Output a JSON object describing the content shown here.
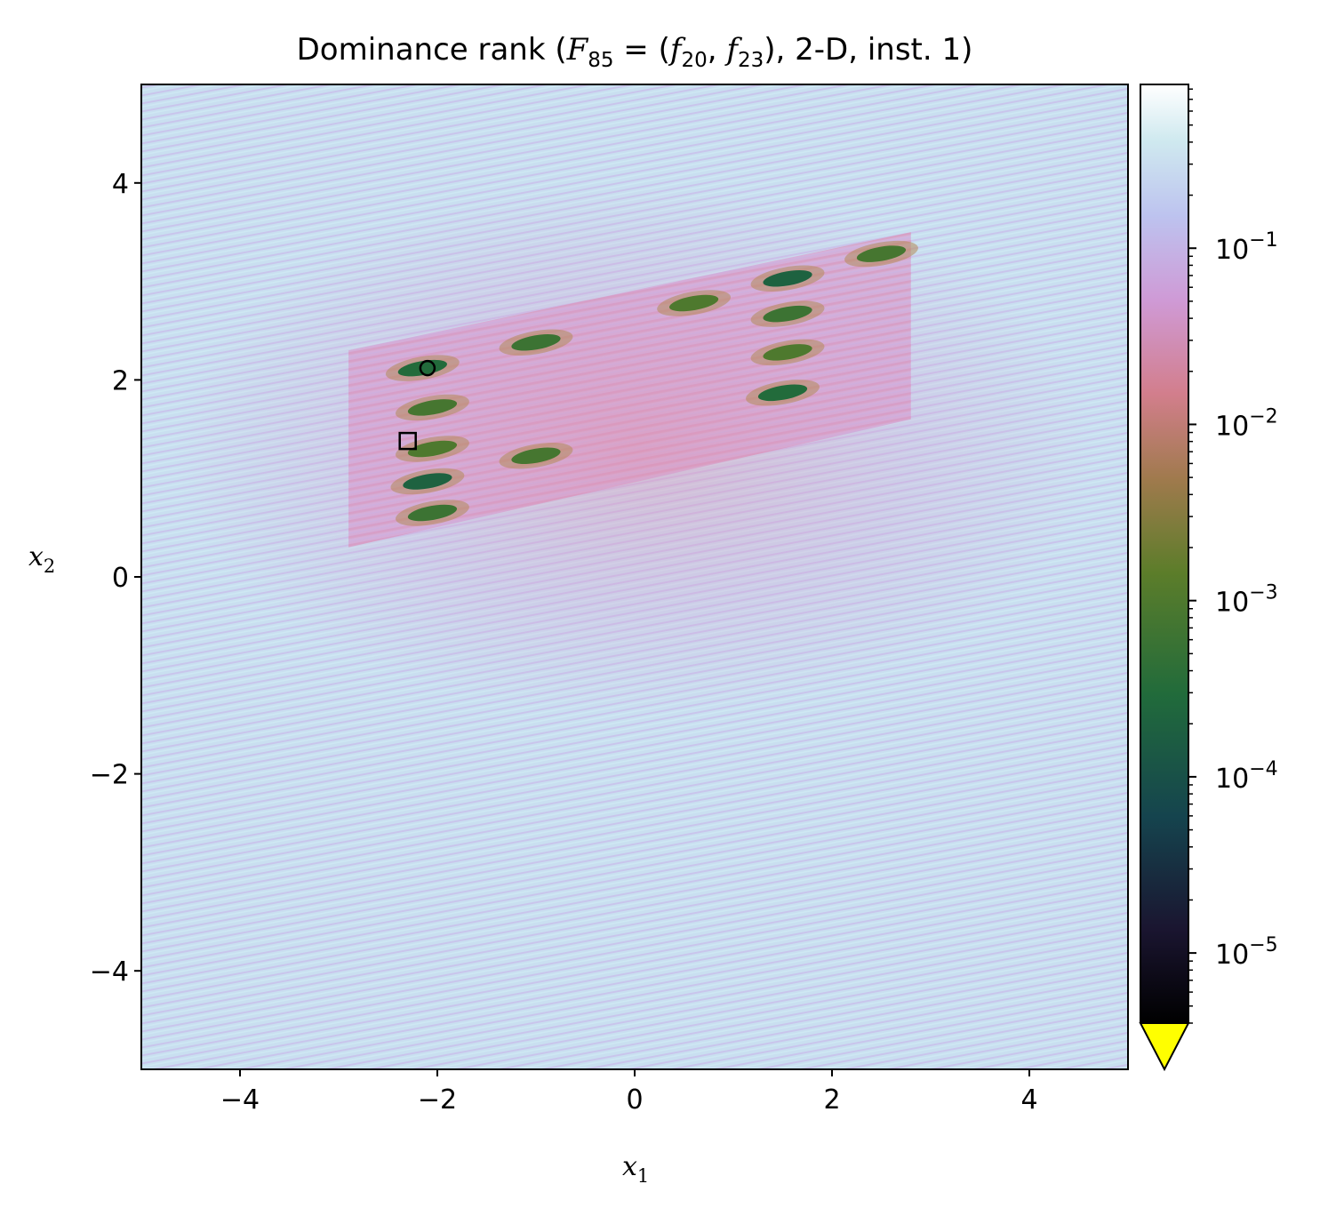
{
  "chart_data": {
    "type": "heatmap",
    "title": {
      "prefix": "Dominance rank (",
      "F": "F",
      "F_sub": "85",
      "eq": " = (",
      "f1": "f",
      "f1_sub": "20",
      "comma": ", ",
      "f2": "f",
      "f2_sub": "23",
      "suffix": "), 2-D, inst. 1)"
    },
    "xlabel": {
      "base": "x",
      "sub": "1"
    },
    "ylabel": {
      "base": "x",
      "sub": "2"
    },
    "xlim": [
      -5,
      5
    ],
    "ylim": [
      -5,
      5
    ],
    "xticks": [
      {
        "value": -4,
        "label": "−4"
      },
      {
        "value": -2,
        "label": "−2"
      },
      {
        "value": 0,
        "label": "0"
      },
      {
        "value": 2,
        "label": "2"
      },
      {
        "value": 4,
        "label": "4"
      }
    ],
    "yticks": [
      {
        "value": -4,
        "label": "−4"
      },
      {
        "value": -2,
        "label": "−2"
      },
      {
        "value": 0,
        "label": "0"
      },
      {
        "value": 2,
        "label": "2"
      },
      {
        "value": 4,
        "label": "4"
      }
    ],
    "colorbar": {
      "scale": "log",
      "range": [
        4e-06,
        0.85
      ],
      "extend": "min",
      "under_color": "#ffff00",
      "colormap": "cubehelix",
      "ticks": [
        {
          "value": 0.1,
          "label": "10",
          "exp": "−1"
        },
        {
          "value": 0.01,
          "label": "10",
          "exp": "−2"
        },
        {
          "value": 0.001,
          "label": "10",
          "exp": "−3"
        },
        {
          "value": 0.0001,
          "label": "10",
          "exp": "−4"
        },
        {
          "value": 1e-05,
          "label": "10",
          "exp": "−5"
        }
      ]
    },
    "background_color": "#c9dff0",
    "stripe_colors": [
      "#c9b7ea",
      "#dca0cf",
      "#cfe9f3"
    ],
    "low_rank_regions": [
      {
        "x": -2.15,
        "y": 2.12,
        "level": 0.0003
      },
      {
        "x": -2.05,
        "y": 1.72,
        "level": 0.0008
      },
      {
        "x": -2.05,
        "y": 1.3,
        "level": 0.001
      },
      {
        "x": -2.1,
        "y": 0.97,
        "level": 0.0002
      },
      {
        "x": -2.05,
        "y": 0.65,
        "level": 0.0006
      },
      {
        "x": -1.0,
        "y": 2.38,
        "level": 0.0006
      },
      {
        "x": -1.0,
        "y": 1.23,
        "level": 0.0008
      },
      {
        "x": 0.6,
        "y": 2.78,
        "level": 0.001
      },
      {
        "x": 1.55,
        "y": 3.03,
        "level": 0.0002
      },
      {
        "x": 1.55,
        "y": 2.67,
        "level": 0.0006
      },
      {
        "x": 1.55,
        "y": 2.28,
        "level": 0.001
      },
      {
        "x": 1.5,
        "y": 1.87,
        "level": 0.0003
      },
      {
        "x": 2.5,
        "y": 3.28,
        "level": 0.0008
      }
    ],
    "markers": [
      {
        "shape": "circle",
        "x": -2.1,
        "y": 2.12
      },
      {
        "shape": "square",
        "x": -2.3,
        "y": 1.38
      }
    ]
  }
}
